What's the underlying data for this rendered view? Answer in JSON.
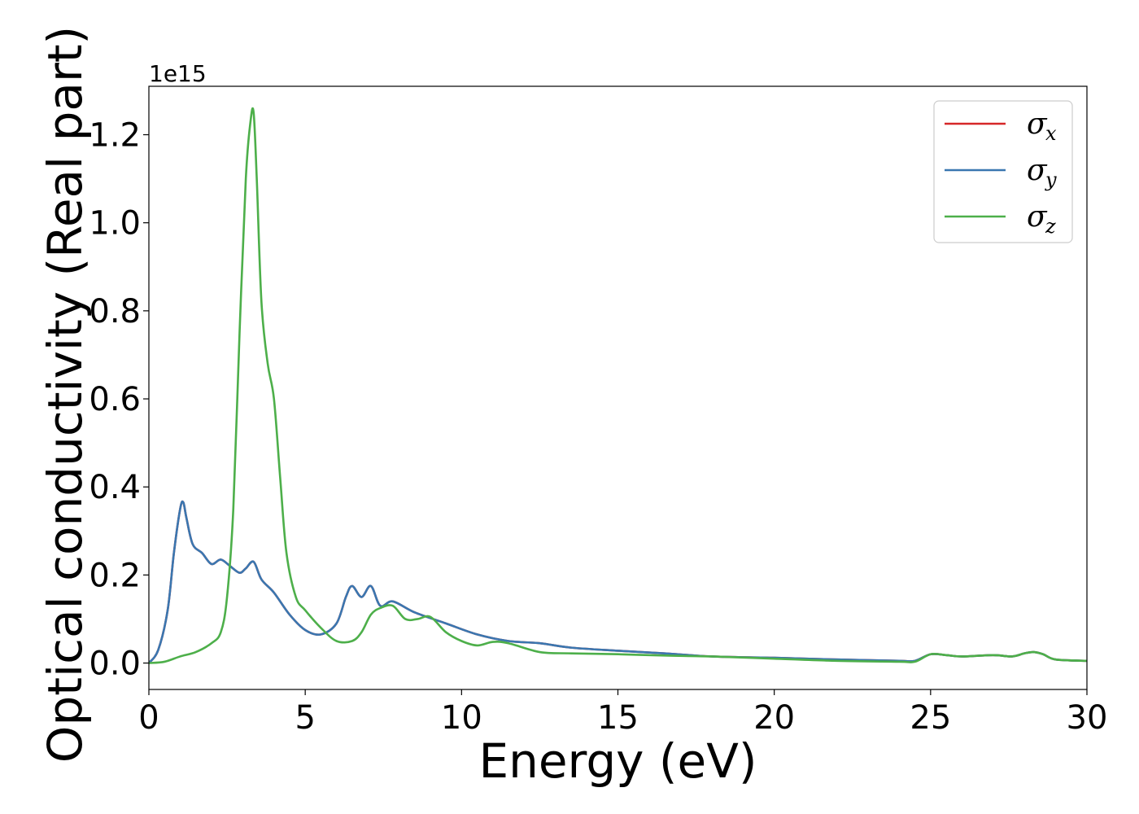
{
  "chart_data": {
    "type": "line",
    "xlabel": "Energy (eV)",
    "ylabel": "Optical conductivity (Real part)",
    "offset_text": "1e15",
    "xlim": [
      0,
      30
    ],
    "ylim": [
      -0.06,
      1.31
    ],
    "xticks": [
      0,
      5,
      10,
      15,
      20,
      25,
      30
    ],
    "yticks": [
      0.0,
      0.2,
      0.4,
      0.6,
      0.8,
      1.0,
      1.2
    ],
    "xtick_labels": [
      "0",
      "5",
      "10",
      "15",
      "20",
      "25",
      "30"
    ],
    "ytick_labels": [
      "0.0",
      "0.2",
      "0.4",
      "0.6",
      "0.8",
      "1.0",
      "1.2"
    ],
    "legend": "top-right",
    "grid": false,
    "series": [
      {
        "name": "σx",
        "symbol": "σ",
        "subscript": "x",
        "color": "#d62728",
        "x": [
          0,
          0.3,
          0.6,
          0.8,
          1.0,
          1.1,
          1.2,
          1.4,
          1.7,
          2.0,
          2.3,
          2.6,
          2.9,
          3.1,
          3.35,
          3.6,
          4.0,
          4.5,
          5.0,
          5.5,
          6.0,
          6.3,
          6.5,
          6.8,
          7.1,
          7.4,
          7.8,
          8.5,
          9.5,
          10.5,
          11.5,
          12.5,
          13.5,
          15.0,
          16.5,
          18.0,
          20.0,
          22.0,
          24.0,
          24.5,
          25.0,
          25.5,
          26.0,
          27.0,
          27.6,
          28.0,
          28.3,
          28.6,
          29.0,
          30.0
        ],
        "y": [
          0.0,
          0.03,
          0.12,
          0.25,
          0.35,
          0.365,
          0.33,
          0.27,
          0.25,
          0.225,
          0.235,
          0.22,
          0.205,
          0.215,
          0.23,
          0.19,
          0.16,
          0.11,
          0.075,
          0.065,
          0.09,
          0.15,
          0.175,
          0.15,
          0.175,
          0.13,
          0.14,
          0.115,
          0.09,
          0.065,
          0.05,
          0.045,
          0.035,
          0.028,
          0.022,
          0.015,
          0.012,
          0.008,
          0.005,
          0.005,
          0.02,
          0.018,
          0.015,
          0.018,
          0.015,
          0.022,
          0.025,
          0.02,
          0.008,
          0.005
        ]
      },
      {
        "name": "σy",
        "symbol": "σ",
        "subscript": "y",
        "color": "#3a77b0",
        "x": [
          0,
          0.3,
          0.6,
          0.8,
          1.0,
          1.1,
          1.2,
          1.4,
          1.7,
          2.0,
          2.3,
          2.6,
          2.9,
          3.1,
          3.35,
          3.6,
          4.0,
          4.5,
          5.0,
          5.5,
          6.0,
          6.3,
          6.5,
          6.8,
          7.1,
          7.4,
          7.8,
          8.5,
          9.5,
          10.5,
          11.5,
          12.5,
          13.5,
          15.0,
          16.5,
          18.0,
          20.0,
          22.0,
          24.0,
          24.5,
          25.0,
          25.5,
          26.0,
          27.0,
          27.6,
          28.0,
          28.3,
          28.6,
          29.0,
          30.0
        ],
        "y": [
          0.0,
          0.03,
          0.12,
          0.25,
          0.35,
          0.365,
          0.33,
          0.27,
          0.25,
          0.225,
          0.235,
          0.22,
          0.205,
          0.215,
          0.23,
          0.19,
          0.16,
          0.11,
          0.075,
          0.065,
          0.09,
          0.15,
          0.175,
          0.15,
          0.175,
          0.13,
          0.14,
          0.115,
          0.09,
          0.065,
          0.05,
          0.045,
          0.035,
          0.028,
          0.022,
          0.015,
          0.012,
          0.008,
          0.005,
          0.005,
          0.02,
          0.018,
          0.015,
          0.018,
          0.015,
          0.022,
          0.025,
          0.02,
          0.008,
          0.005
        ]
      },
      {
        "name": "σz",
        "symbol": "σ",
        "subscript": "z",
        "color": "#4daf4a",
        "x": [
          0,
          0.5,
          1.0,
          1.5,
          2.0,
          2.3,
          2.5,
          2.7,
          2.9,
          3.1,
          3.25,
          3.35,
          3.45,
          3.6,
          3.8,
          4.0,
          4.2,
          4.4,
          4.7,
          5.0,
          5.5,
          6.0,
          6.5,
          6.8,
          7.1,
          7.4,
          7.8,
          8.2,
          8.6,
          9.0,
          9.5,
          10.0,
          10.5,
          11.0,
          11.5,
          12.5,
          13.5,
          15.0,
          16.5,
          18.0,
          20.0,
          22.0,
          24.0,
          24.5,
          25.0,
          25.5,
          26.0,
          27.0,
          27.6,
          28.0,
          28.3,
          28.6,
          29.0,
          30.0
        ],
        "y": [
          0.0,
          0.003,
          0.015,
          0.025,
          0.045,
          0.07,
          0.15,
          0.35,
          0.75,
          1.1,
          1.23,
          1.25,
          1.1,
          0.82,
          0.68,
          0.6,
          0.42,
          0.25,
          0.15,
          0.12,
          0.08,
          0.05,
          0.05,
          0.07,
          0.11,
          0.125,
          0.13,
          0.1,
          0.1,
          0.105,
          0.07,
          0.05,
          0.04,
          0.048,
          0.045,
          0.025,
          0.022,
          0.02,
          0.017,
          0.015,
          0.01,
          0.005,
          0.003,
          0.003,
          0.02,
          0.018,
          0.015,
          0.018,
          0.015,
          0.022,
          0.025,
          0.02,
          0.008,
          0.005
        ]
      }
    ]
  }
}
